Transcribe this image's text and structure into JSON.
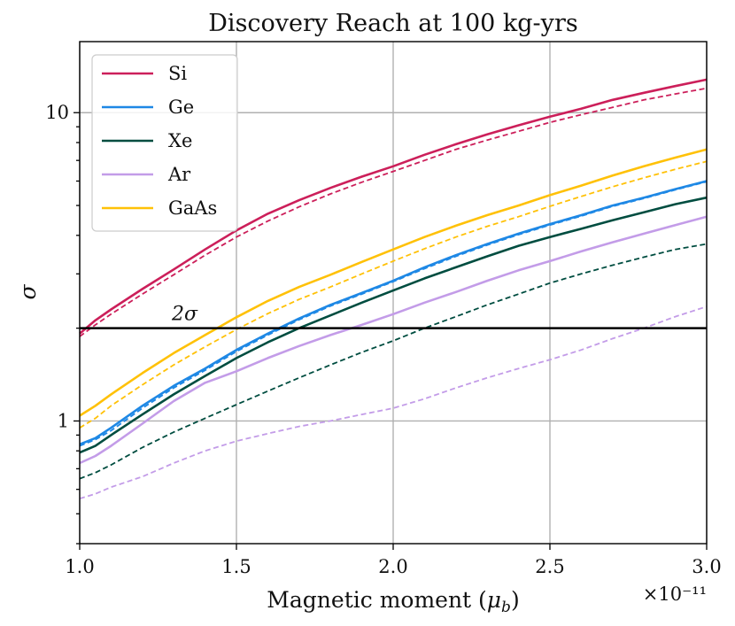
{
  "chart_data": {
    "type": "line",
    "title": "Discovery Reach at 100 kg-yrs",
    "xlabel": "Magnetic moment (μ_b)",
    "xlabel_main": "Magnetic moment (",
    "xlabel_symbol": "μ",
    "xlabel_sub": "b",
    "xlabel_close": ")",
    "x_offset_text": "×10⁻¹¹",
    "ylabel": "σ",
    "xlim": [
      1.0,
      3.0
    ],
    "ylim": [
      0.4,
      17
    ],
    "yscale": "log",
    "x_ticks": [
      1.0,
      1.5,
      2.0,
      2.5,
      3.0
    ],
    "x_tick_labels": [
      "1.0",
      "1.5",
      "2.0",
      "2.5",
      "3.0"
    ],
    "y_major_ticks": [
      1,
      10
    ],
    "y_tick_labels": [
      "1",
      "10"
    ],
    "y_minor_ticks": [
      0.4,
      0.5,
      0.6,
      0.7,
      0.8,
      0.9,
      2,
      3,
      4,
      5,
      6,
      7,
      8,
      9
    ],
    "grid": true,
    "legend_position": "top-left",
    "reference_line": {
      "y": 2,
      "label": "2σ",
      "color": "#000000"
    },
    "x": [
      1.0,
      1.05,
      1.1,
      1.2,
      1.3,
      1.4,
      1.5,
      1.6,
      1.7,
      1.8,
      1.9,
      2.0,
      2.1,
      2.2,
      2.3,
      2.4,
      2.5,
      2.6,
      2.7,
      2.8,
      2.9,
      3.0
    ],
    "series": [
      {
        "name": "Si",
        "color": "#cc1f5a",
        "style": "solid",
        "values": [
          1.92,
          2.12,
          2.3,
          2.68,
          3.1,
          3.6,
          4.15,
          4.7,
          5.2,
          5.7,
          6.2,
          6.7,
          7.3,
          7.9,
          8.5,
          9.1,
          9.7,
          10.3,
          11.0,
          11.6,
          12.2,
          12.8
        ]
      },
      {
        "name": "Si",
        "color": "#cc1f5a",
        "style": "dashed",
        "values": [
          1.88,
          2.05,
          2.22,
          2.58,
          2.98,
          3.45,
          3.95,
          4.45,
          4.95,
          5.45,
          5.95,
          6.45,
          7.0,
          7.6,
          8.15,
          8.7,
          9.3,
          9.85,
          10.4,
          11.0,
          11.5,
          12.0
        ]
      },
      {
        "name": "Ge",
        "color": "#1e88e5",
        "style": "solid",
        "values": [
          0.84,
          0.88,
          0.95,
          1.12,
          1.3,
          1.48,
          1.7,
          1.92,
          2.15,
          2.38,
          2.6,
          2.85,
          3.15,
          3.45,
          3.75,
          4.05,
          4.35,
          4.65,
          5.0,
          5.3,
          5.65,
          6.0
        ]
      },
      {
        "name": "Ge",
        "color": "#1e88e5",
        "style": "dashed",
        "values": [
          0.83,
          0.87,
          0.93,
          1.1,
          1.28,
          1.46,
          1.68,
          1.9,
          2.13,
          2.36,
          2.58,
          2.83,
          3.12,
          3.42,
          3.72,
          4.02,
          4.32,
          4.62,
          4.97,
          5.27,
          5.62,
          5.97
        ]
      },
      {
        "name": "Xe",
        "color": "#004d40",
        "style": "solid",
        "values": [
          0.79,
          0.83,
          0.9,
          1.05,
          1.22,
          1.4,
          1.6,
          1.8,
          2.0,
          2.2,
          2.42,
          2.65,
          2.9,
          3.15,
          3.42,
          3.7,
          3.95,
          4.2,
          4.48,
          4.75,
          5.05,
          5.3
        ]
      },
      {
        "name": "Xe",
        "color": "#004d40",
        "style": "dashed",
        "values": [
          0.65,
          0.68,
          0.72,
          0.82,
          0.92,
          1.02,
          1.13,
          1.25,
          1.38,
          1.52,
          1.67,
          1.82,
          2.0,
          2.18,
          2.38,
          2.58,
          2.8,
          3.0,
          3.2,
          3.4,
          3.6,
          3.75
        ]
      },
      {
        "name": "Ar",
        "color": "#c39ce8",
        "style": "solid",
        "values": [
          0.73,
          0.77,
          0.83,
          0.98,
          1.16,
          1.33,
          1.45,
          1.6,
          1.75,
          1.9,
          2.05,
          2.22,
          2.42,
          2.62,
          2.85,
          3.08,
          3.3,
          3.55,
          3.8,
          4.05,
          4.32,
          4.6
        ]
      },
      {
        "name": "Ar",
        "color": "#c39ce8",
        "style": "dashed",
        "values": [
          0.56,
          0.58,
          0.61,
          0.66,
          0.73,
          0.8,
          0.86,
          0.91,
          0.96,
          1.0,
          1.05,
          1.1,
          1.18,
          1.28,
          1.38,
          1.48,
          1.58,
          1.7,
          1.85,
          2.0,
          2.18,
          2.35
        ]
      },
      {
        "name": "GaAs",
        "color": "#ffc107",
        "style": "solid",
        "values": [
          1.04,
          1.12,
          1.22,
          1.43,
          1.66,
          1.9,
          2.17,
          2.45,
          2.72,
          2.98,
          3.28,
          3.6,
          3.95,
          4.3,
          4.65,
          5.0,
          5.4,
          5.8,
          6.25,
          6.7,
          7.15,
          7.6
        ]
      },
      {
        "name": "GaAs",
        "color": "#ffc107",
        "style": "dashed",
        "values": [
          0.95,
          1.02,
          1.12,
          1.31,
          1.52,
          1.74,
          1.98,
          2.23,
          2.48,
          2.72,
          3.0,
          3.3,
          3.62,
          3.95,
          4.28,
          4.6,
          4.97,
          5.35,
          5.75,
          6.15,
          6.55,
          6.95
        ]
      }
    ],
    "legend": [
      {
        "label": "Si",
        "color": "#cc1f5a"
      },
      {
        "label": "Ge",
        "color": "#1e88e5"
      },
      {
        "label": "Xe",
        "color": "#004d40"
      },
      {
        "label": "Ar",
        "color": "#c39ce8"
      },
      {
        "label": "GaAs",
        "color": "#ffc107"
      }
    ]
  }
}
